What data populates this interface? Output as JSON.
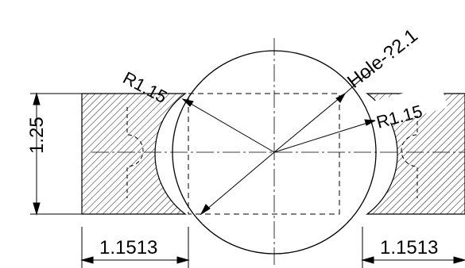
{
  "labels": {
    "radius_left": "R1.15",
    "radius_right": "R1.15",
    "hole": "Hole-?2.1",
    "height_dim": "1.25",
    "width_left": "1.1513",
    "width_right": "1.1513"
  },
  "colors": {
    "line": "#000000",
    "background": "#ffffff"
  }
}
